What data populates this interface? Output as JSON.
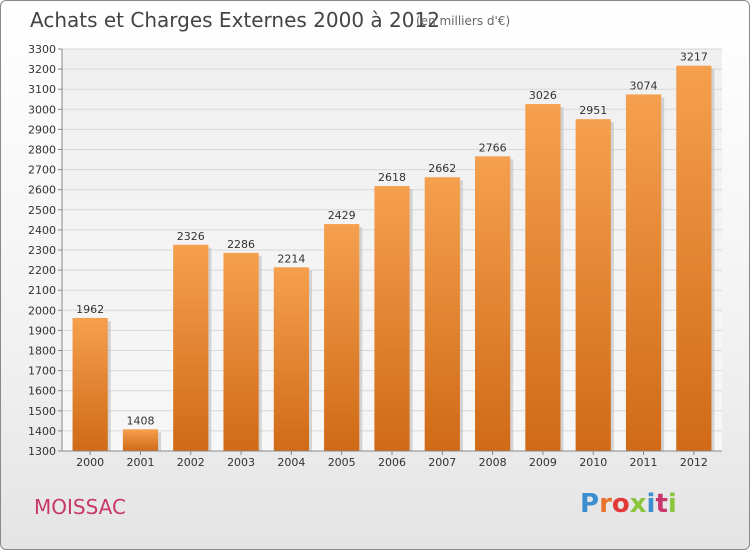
{
  "header": {
    "title": "Achats et Charges Externes 2000 à 2012",
    "subtitle": "(en milliers d'€)"
  },
  "footer": {
    "city": "MOISSAC",
    "brand": "Proxiti",
    "brand_colors": [
      "#3b8fd0",
      "#e8732b",
      "#e03a3a",
      "#8cc63f",
      "#3b8fd0",
      "#c8366b",
      "#8cc63f"
    ]
  },
  "colors": {
    "bar_top": "#f5a04e",
    "bar_bottom": "#d06a16",
    "grid": "#d8d8d8",
    "title": "#444444",
    "city": "#c8366b"
  },
  "chart_data": {
    "type": "bar",
    "categories": [
      "2000",
      "2001",
      "2002",
      "2003",
      "2004",
      "2005",
      "2006",
      "2007",
      "2008",
      "2009",
      "2010",
      "2011",
      "2012"
    ],
    "values": [
      1962,
      1408,
      2326,
      2286,
      2214,
      2429,
      2618,
      2662,
      2766,
      3026,
      2951,
      3074,
      3217
    ],
    "ylim": [
      1300,
      3300
    ],
    "yticks": [
      1300,
      1400,
      1500,
      1600,
      1700,
      1800,
      1900,
      2000,
      2100,
      2200,
      2300,
      2400,
      2500,
      2600,
      2700,
      2800,
      2900,
      3000,
      3100,
      3200,
      3300
    ],
    "grid": true,
    "data_labels": true,
    "xlabel": "",
    "ylabel": ""
  }
}
